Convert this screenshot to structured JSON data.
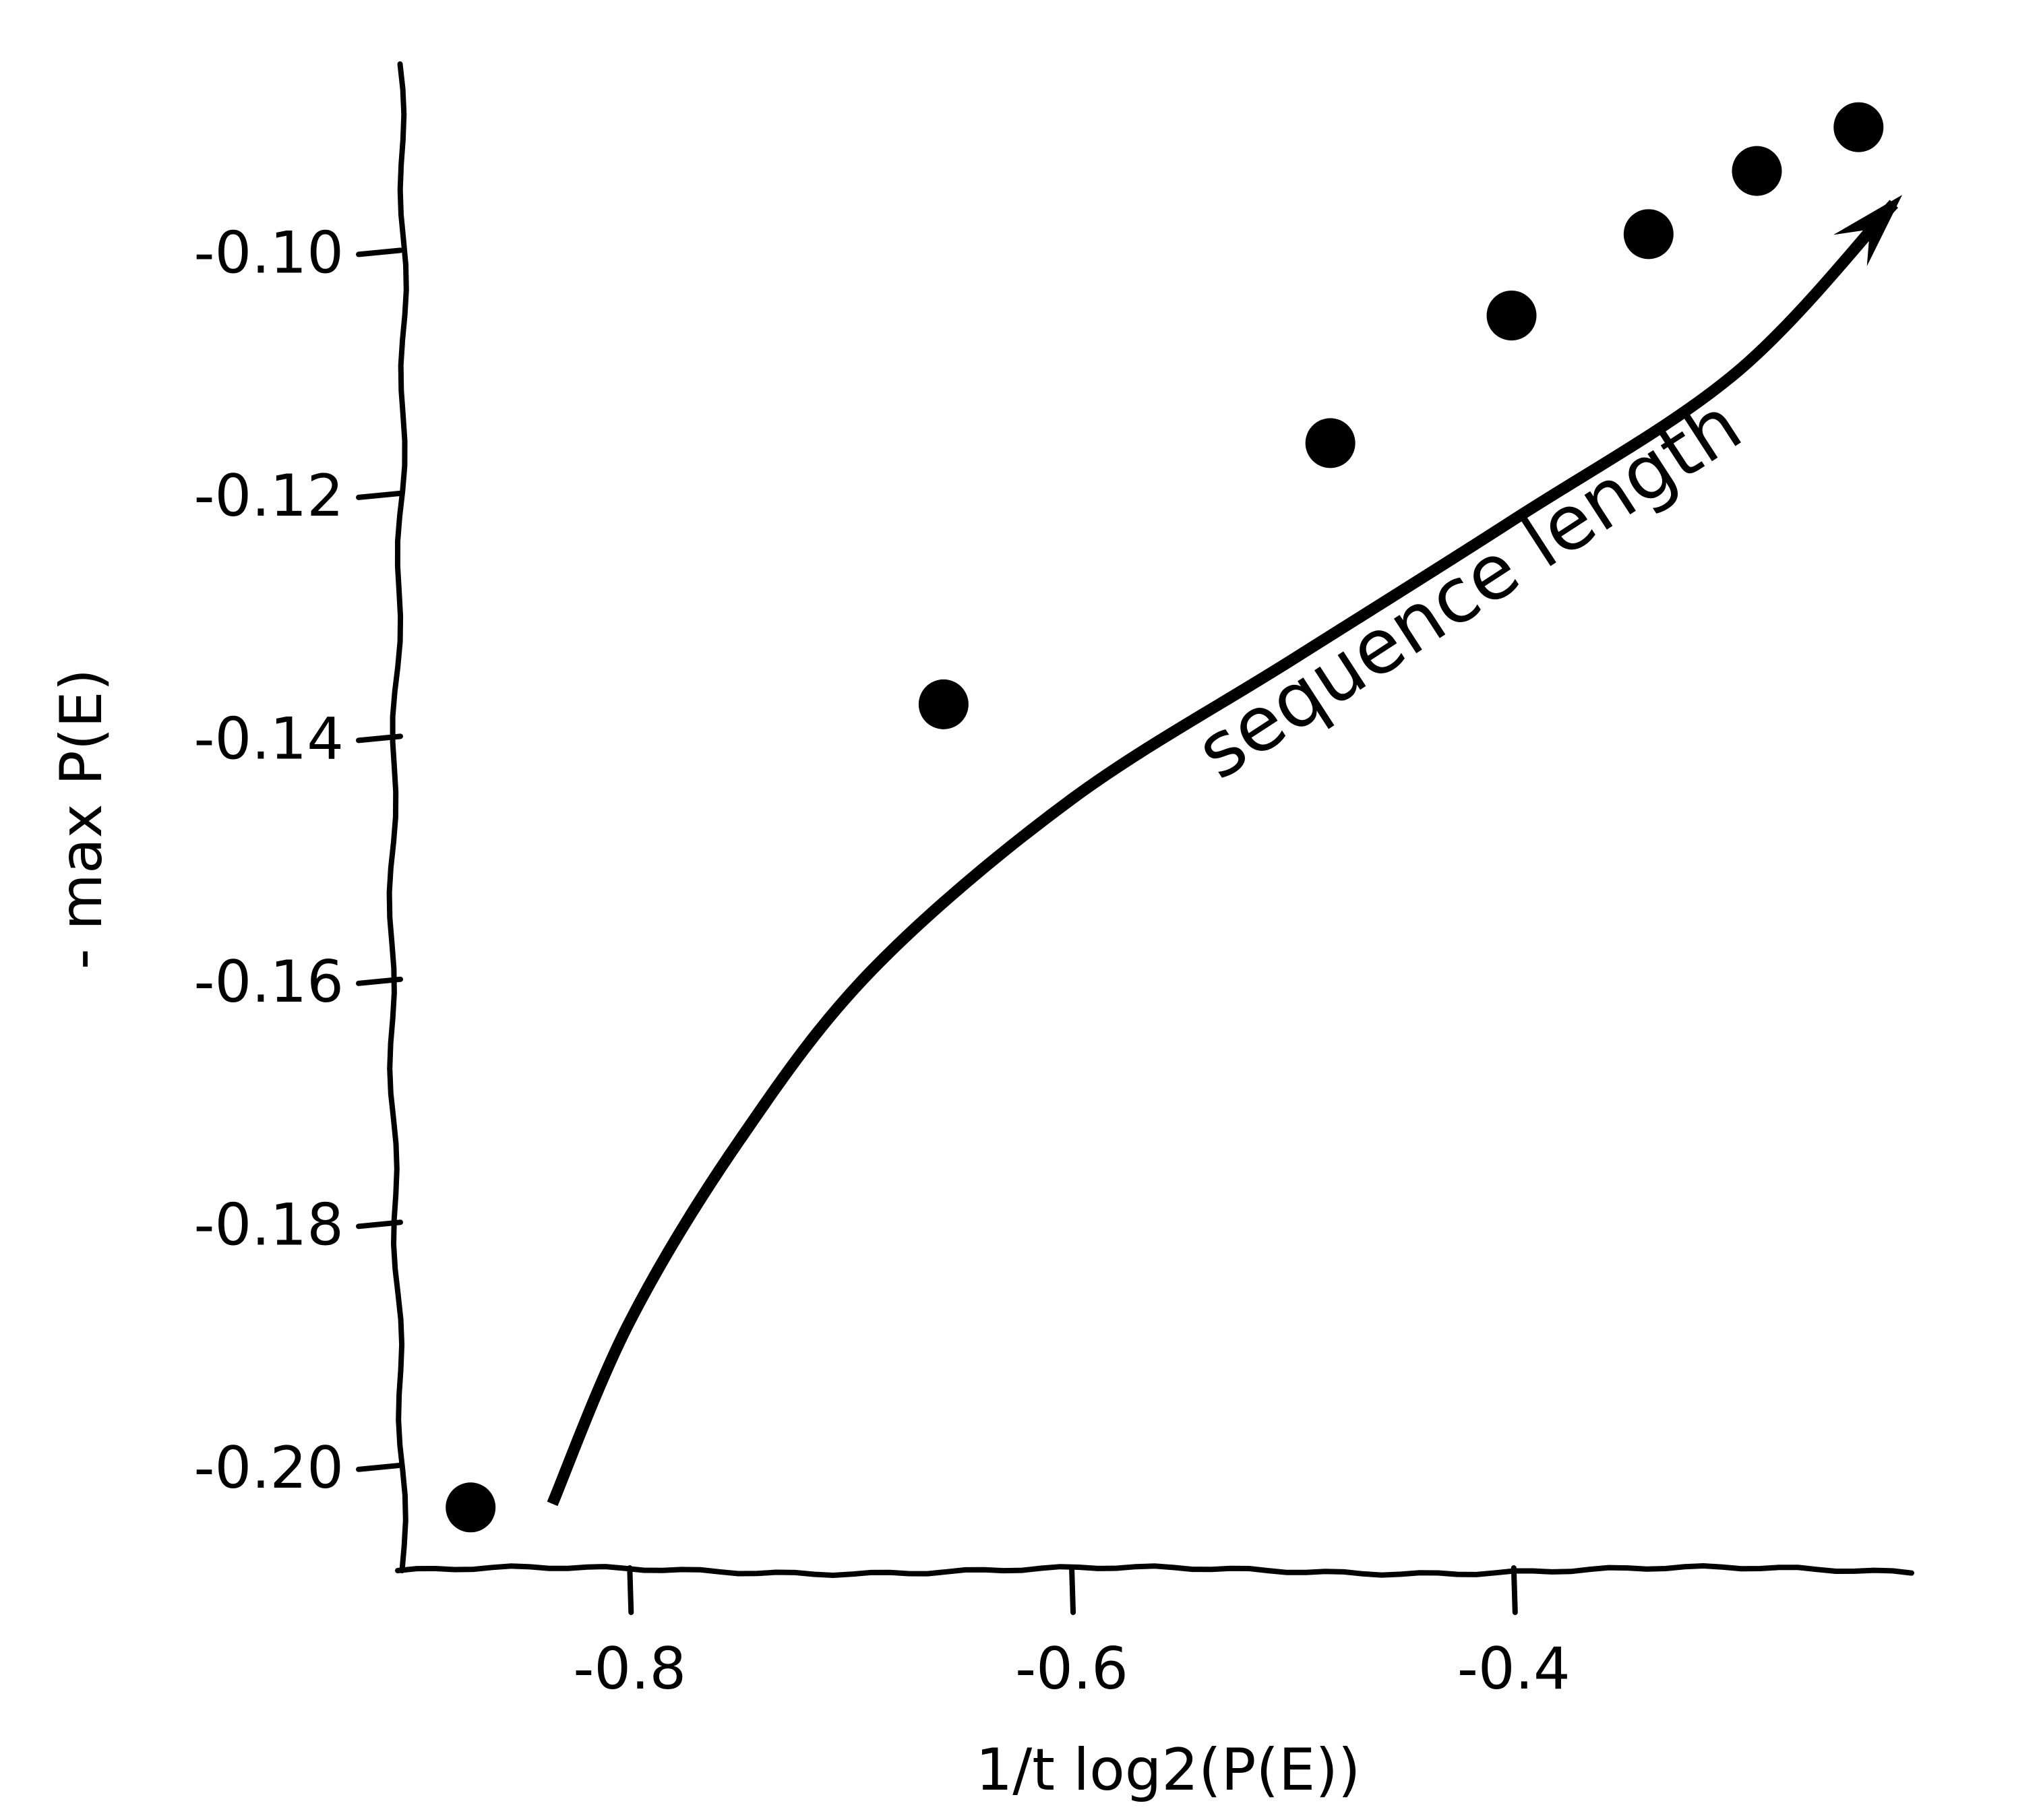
{
  "chart_data": {
    "type": "scatter",
    "title": "",
    "xlabel": "1/t log2(P(E))",
    "ylabel": "- max P(E)",
    "xlim": [
      -0.905,
      -0.22
    ],
    "ylim": [
      -0.2085,
      -0.0845
    ],
    "x_ticks": [
      {
        "value": -0.8,
        "label": "-0.8"
      },
      {
        "value": -0.6,
        "label": "-0.6"
      },
      {
        "value": -0.4,
        "label": "-0.4"
      }
    ],
    "y_ticks": [
      {
        "value": -0.2,
        "label": "-0.20"
      },
      {
        "value": -0.18,
        "label": "-0.18"
      },
      {
        "value": -0.16,
        "label": "-0.16"
      },
      {
        "value": -0.14,
        "label": "-0.14"
      },
      {
        "value": -0.12,
        "label": "-0.12"
      },
      {
        "value": -0.1,
        "label": "-0.10"
      }
    ],
    "points": [
      {
        "x": -0.872,
        "y": -0.2033
      },
      {
        "x": -0.658,
        "y": -0.1372
      },
      {
        "x": -0.483,
        "y": -0.1157
      },
      {
        "x": -0.401,
        "y": -0.1052
      },
      {
        "x": -0.339,
        "y": -0.0985
      },
      {
        "x": -0.29,
        "y": -0.0933
      },
      {
        "x": -0.244,
        "y": -0.0897
      }
    ],
    "annotation": {
      "text": "sequence length",
      "arrow_path": [
        {
          "x": -0.835,
          "y": -0.203
        },
        {
          "x": -0.8,
          "y": -0.188
        },
        {
          "x": -0.75,
          "y": -0.173
        },
        {
          "x": -0.69,
          "y": -0.159
        },
        {
          "x": -0.6,
          "y": -0.145
        },
        {
          "x": -0.5,
          "y": -0.1335
        },
        {
          "x": -0.4,
          "y": -0.122
        },
        {
          "x": -0.3,
          "y": -0.11
        },
        {
          "x": -0.228,
          "y": -0.096
        }
      ]
    },
    "grid": false,
    "legend": "none",
    "colors": {
      "marker": "#000000",
      "axis": "#000000",
      "background": "#ffffff"
    }
  }
}
